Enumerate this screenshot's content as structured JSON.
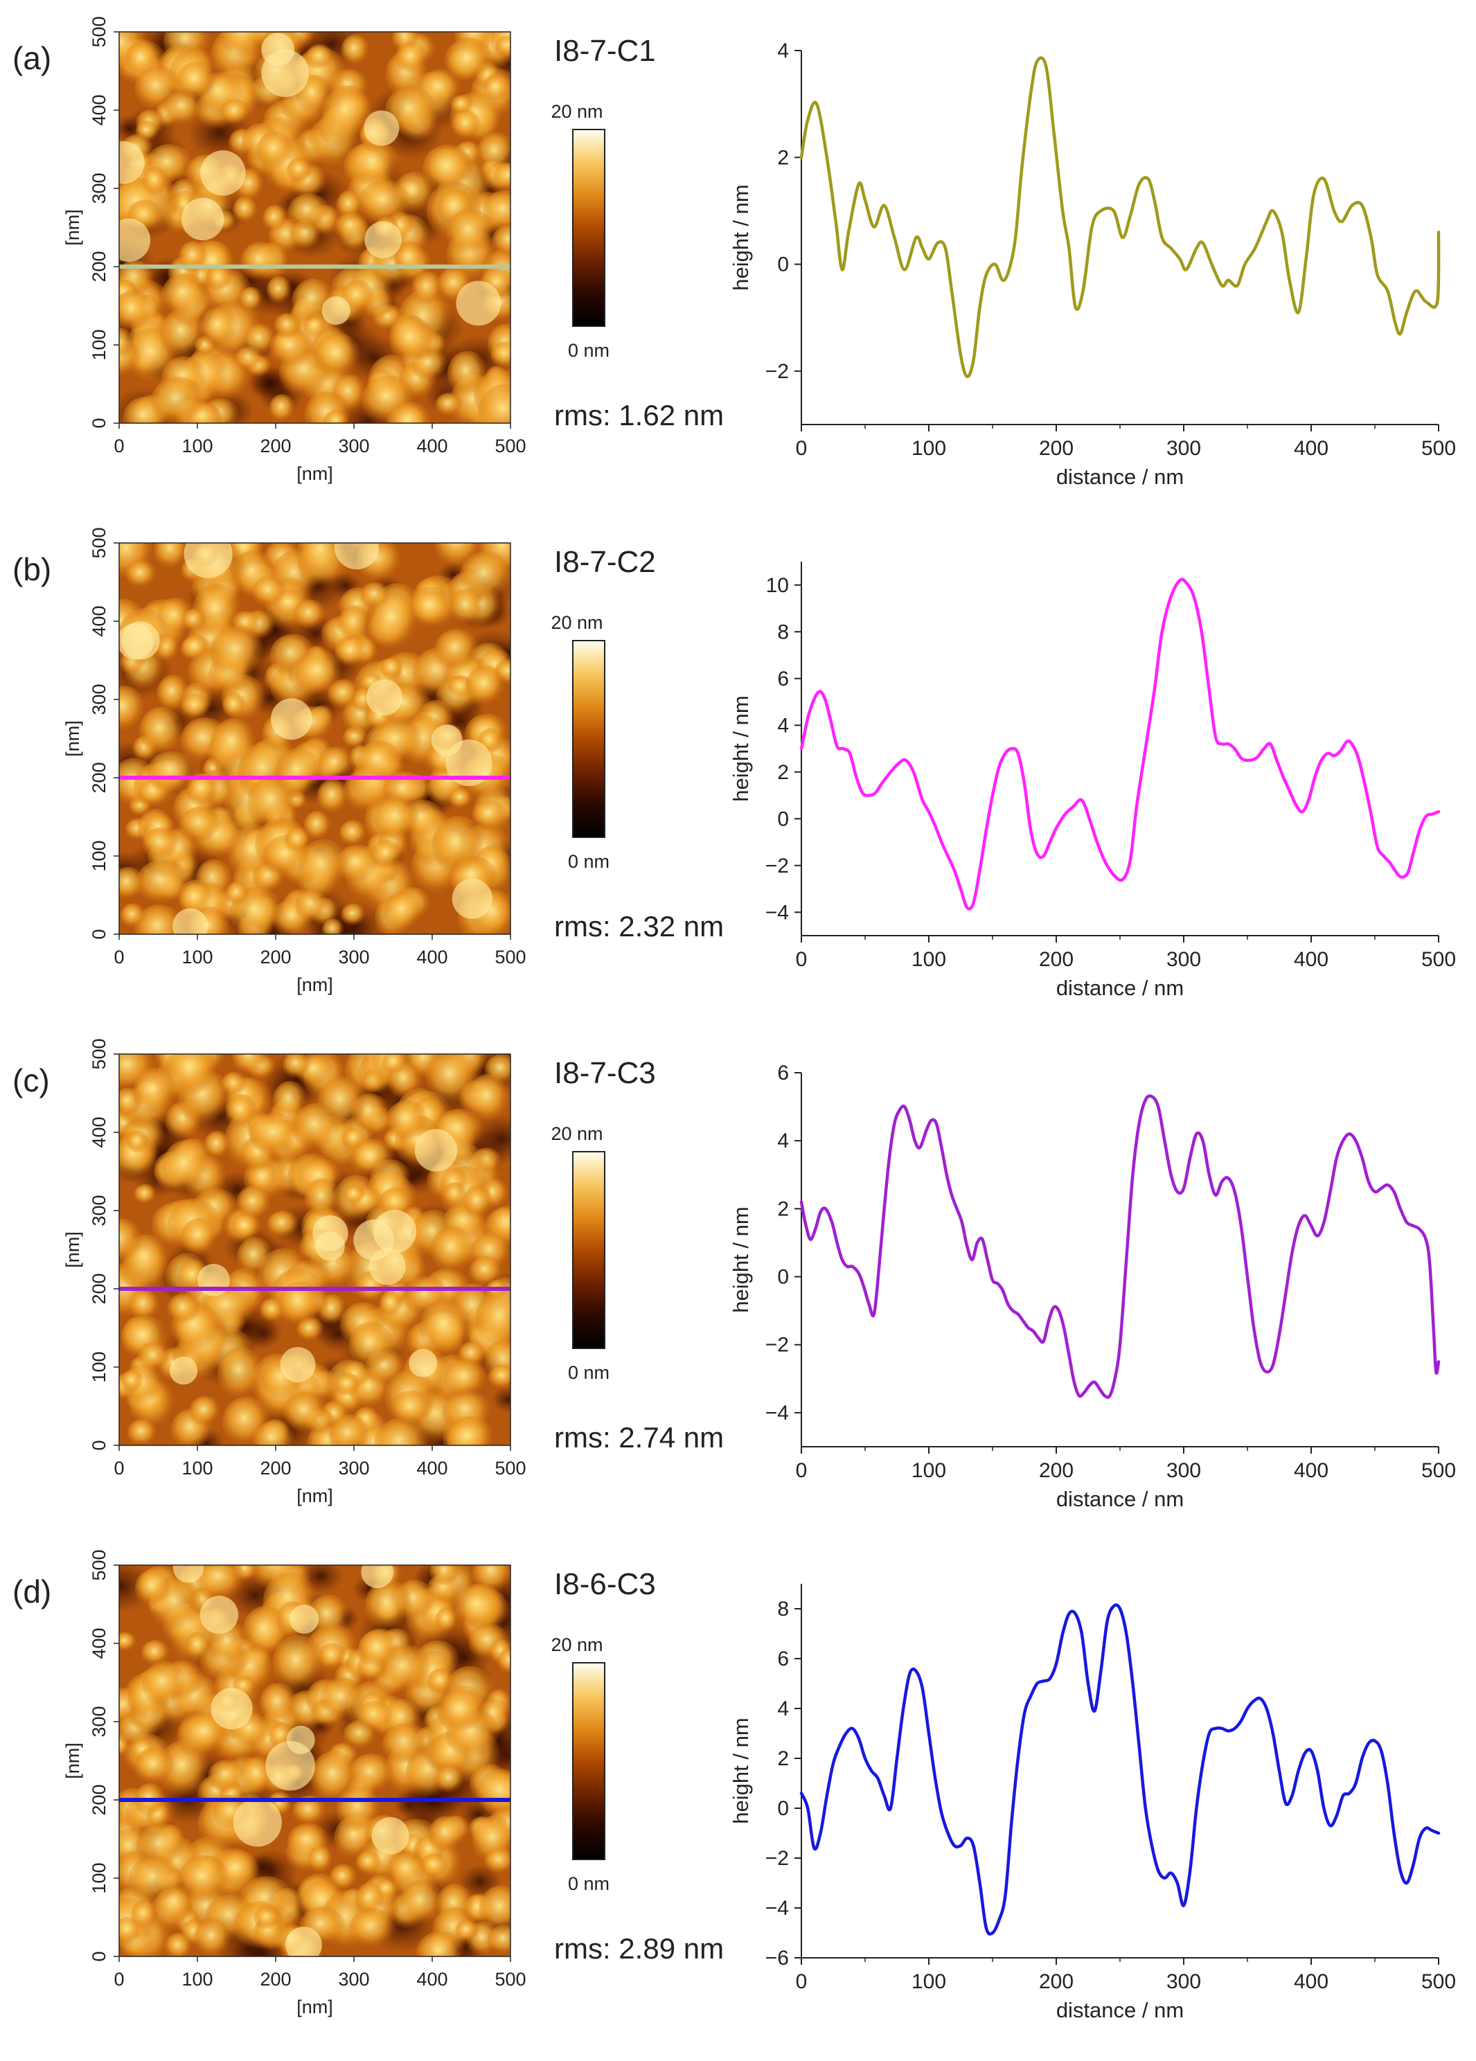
{
  "figure": {
    "colorbar_max_label": "20 nm",
    "colorbar_min_label": "0 nm",
    "afm_axis_label": "[nm]",
    "afm_ticks": [
      "0",
      "100",
      "200",
      "300",
      "400",
      "500"
    ],
    "colormap": [
      "#000000",
      "#2a0800",
      "#6e2200",
      "#b04a00",
      "#e08a1a",
      "#f8c860",
      "#fffff0"
    ]
  },
  "chart_data": [
    {
      "type": "line",
      "panel_label": "(a)",
      "sample": "I8-7-C1",
      "rms_text": "rms: 1.62 nm",
      "color": "#a09a1c",
      "scanline_color": "#b8c89a",
      "scanline_y_nm": 200,
      "xlabel": "distance / nm",
      "ylabel": "height / nm",
      "xlim": [
        0,
        500
      ],
      "ylim": [
        -3,
        4
      ],
      "xticks": [
        0,
        100,
        200,
        300,
        400,
        500
      ],
      "yticks": [
        -2,
        0,
        2,
        4
      ],
      "x": [
        0,
        5,
        12,
        20,
        27,
        32,
        37,
        45,
        50,
        57,
        65,
        73,
        81,
        90,
        95,
        100,
        107,
        113,
        118,
        125,
        130,
        135,
        140,
        145,
        152,
        158,
        163,
        168,
        173,
        180,
        185,
        192,
        198,
        205,
        210,
        215,
        221,
        228,
        235,
        245,
        252,
        258,
        265,
        272,
        277,
        283,
        290,
        297,
        302,
        310,
        315,
        322,
        330,
        335,
        342,
        348,
        356,
        365,
        370,
        377,
        383,
        390,
        396,
        402,
        410,
        418,
        424,
        432,
        440,
        447,
        452,
        460,
        466,
        470,
        475,
        482,
        490,
        499,
        500
      ],
      "y": [
        2.0,
        2.7,
        3.0,
        2.0,
        0.8,
        -0.1,
        0.6,
        1.5,
        1.2,
        0.7,
        1.1,
        0.5,
        -0.1,
        0.5,
        0.3,
        0.1,
        0.4,
        0.3,
        -0.5,
        -1.7,
        -2.1,
        -1.8,
        -0.8,
        -0.2,
        0.0,
        -0.3,
        -0.1,
        0.5,
        1.8,
        3.2,
        3.8,
        3.7,
        2.5,
        1.0,
        0.3,
        -0.8,
        -0.5,
        0.7,
        1.0,
        1.0,
        0.5,
        0.9,
        1.5,
        1.6,
        1.2,
        0.5,
        0.3,
        0.1,
        -0.1,
        0.3,
        0.4,
        0.0,
        -0.4,
        -0.3,
        -0.4,
        0.0,
        0.3,
        0.8,
        1.0,
        0.6,
        -0.3,
        -0.9,
        0.1,
        1.3,
        1.6,
        1.0,
        0.8,
        1.1,
        1.1,
        0.5,
        -0.2,
        -0.5,
        -1.1,
        -1.3,
        -0.9,
        -0.5,
        -0.7,
        -0.7,
        0.6
      ]
    },
    {
      "type": "line",
      "panel_label": "(b)",
      "sample": "I8-7-C2",
      "rms_text": "rms: 2.32 nm",
      "color": "#ff22ff",
      "scanline_color": "#ff22ff",
      "scanline_y_nm": 200,
      "xlabel": "distance / nm",
      "ylabel": "height / nm",
      "xlim": [
        0,
        500
      ],
      "ylim": [
        -5,
        11
      ],
      "xticks": [
        0,
        100,
        200,
        300,
        400,
        500
      ],
      "yticks": [
        -4,
        -2,
        0,
        2,
        4,
        6,
        8,
        10
      ],
      "x": [
        0,
        6,
        13,
        18,
        23,
        28,
        33,
        38,
        43,
        48,
        53,
        58,
        63,
        70,
        77,
        82,
        88,
        95,
        100,
        105,
        110,
        115,
        120,
        125,
        130,
        135,
        140,
        145,
        150,
        155,
        160,
        165,
        170,
        175,
        180,
        185,
        190,
        195,
        200,
        207,
        213,
        220,
        226,
        232,
        238,
        245,
        252,
        258,
        263,
        270,
        277,
        283,
        290,
        297,
        302,
        308,
        314,
        320,
        325,
        330,
        335,
        340,
        345,
        350,
        357,
        363,
        368,
        373,
        378,
        383,
        388,
        393,
        398,
        403,
        408,
        413,
        418,
        423,
        428,
        432,
        437,
        442,
        447,
        452,
        457,
        462,
        467,
        471,
        476,
        480,
        485,
        490,
        495,
        500
      ],
      "y": [
        3.0,
        4.5,
        5.4,
        5.2,
        4.2,
        3.1,
        3.0,
        2.8,
        1.8,
        1.1,
        1.0,
        1.1,
        1.5,
        2.0,
        2.4,
        2.5,
        2.0,
        0.8,
        0.3,
        -0.3,
        -1.0,
        -1.6,
        -2.2,
        -3.0,
        -3.8,
        -3.6,
        -2.2,
        -0.5,
        1.0,
        2.2,
        2.8,
        3.0,
        2.8,
        1.5,
        -0.5,
        -1.5,
        -1.6,
        -1.0,
        -0.4,
        0.2,
        0.5,
        0.8,
        0.0,
        -1.0,
        -1.8,
        -2.4,
        -2.6,
        -1.8,
        0.5,
        3.0,
        5.5,
        8.0,
        9.5,
        10.2,
        10.1,
        9.5,
        8.0,
        5.5,
        3.5,
        3.2,
        3.2,
        3.0,
        2.6,
        2.5,
        2.6,
        3.0,
        3.2,
        2.5,
        1.8,
        1.2,
        0.6,
        0.3,
        0.8,
        1.8,
        2.5,
        2.8,
        2.7,
        2.9,
        3.3,
        3.2,
        2.6,
        1.5,
        0.2,
        -1.2,
        -1.6,
        -1.9,
        -2.3,
        -2.5,
        -2.3,
        -1.5,
        -0.5,
        0.1,
        0.2,
        0.3
      ]
    },
    {
      "type": "line",
      "panel_label": "(c)",
      "sample": "I8-7-C3",
      "rms_text": "rms: 2.74 nm",
      "color": "#a020d0",
      "scanline_color": "#a020d0",
      "scanline_y_nm": 200,
      "xlabel": "distance / nm",
      "ylabel": "height / nm",
      "xlim": [
        0,
        500
      ],
      "ylim": [
        -5,
        6
      ],
      "xticks": [
        0,
        100,
        200,
        300,
        400,
        500
      ],
      "yticks": [
        -4,
        -2,
        0,
        2,
        4,
        6
      ],
      "x": [
        0,
        3,
        7,
        11,
        15,
        19,
        24,
        28,
        32,
        36,
        40,
        45,
        49,
        53,
        57,
        61,
        65,
        69,
        73,
        77,
        81,
        85,
        89,
        93,
        98,
        102,
        106,
        110,
        114,
        118,
        122,
        126,
        130,
        134,
        138,
        142,
        146,
        150,
        154,
        158,
        162,
        166,
        170,
        174,
        178,
        182,
        186,
        190,
        194,
        198,
        202,
        206,
        210,
        214,
        218,
        222,
        226,
        230,
        234,
        238,
        242,
        246,
        250,
        255,
        260,
        265,
        270,
        275,
        280,
        285,
        290,
        295,
        300,
        305,
        310,
        315,
        320,
        325,
        330,
        335,
        340,
        345,
        350,
        355,
        360,
        365,
        370,
        375,
        380,
        385,
        390,
        395,
        400,
        405,
        410,
        415,
        420,
        425,
        430,
        435,
        440,
        445,
        450,
        455,
        460,
        465,
        470,
        475,
        480,
        485,
        490,
        493,
        496,
        498,
        500
      ],
      "y": [
        2.2,
        1.6,
        1.1,
        1.4,
        1.9,
        2.0,
        1.6,
        1.0,
        0.5,
        0.3,
        0.3,
        0.1,
        -0.3,
        -0.8,
        -1.1,
        0.3,
        2.0,
        3.5,
        4.5,
        4.9,
        5.0,
        4.6,
        4.0,
        3.8,
        4.3,
        4.6,
        4.5,
        3.8,
        3.0,
        2.4,
        2.0,
        1.6,
        0.9,
        0.5,
        1.0,
        1.1,
        0.5,
        -0.1,
        -0.2,
        -0.4,
        -0.8,
        -1.0,
        -1.1,
        -1.3,
        -1.5,
        -1.6,
        -1.8,
        -1.9,
        -1.3,
        -0.9,
        -1.0,
        -1.5,
        -2.3,
        -3.1,
        -3.5,
        -3.4,
        -3.2,
        -3.1,
        -3.3,
        -3.5,
        -3.5,
        -3.0,
        -2.0,
        0.5,
        3.0,
        4.5,
        5.2,
        5.3,
        5.0,
        4.0,
        3.0,
        2.5,
        2.6,
        3.5,
        4.2,
        4.0,
        3.0,
        2.4,
        2.8,
        2.9,
        2.5,
        1.5,
        0.0,
        -1.5,
        -2.5,
        -2.8,
        -2.6,
        -1.7,
        -0.5,
        0.7,
        1.5,
        1.8,
        1.5,
        1.2,
        1.6,
        2.5,
        3.5,
        4.0,
        4.2,
        4.0,
        3.5,
        2.8,
        2.5,
        2.6,
        2.7,
        2.5,
        2.0,
        1.6,
        1.5,
        1.4,
        1.1,
        0.4,
        -1.5,
        -2.8,
        -2.5
      ]
    },
    {
      "type": "line",
      "panel_label": "(d)",
      "sample": "I8-6-C3",
      "rms_text": "rms: 2.89 nm",
      "color": "#1818e0",
      "scanline_color": "#1818e0",
      "scanline_y_nm": 200,
      "xlabel": "distance / nm",
      "ylabel": "height / nm",
      "xlim": [
        0,
        500
      ],
      "ylim": [
        -6,
        9
      ],
      "xticks": [
        0,
        100,
        200,
        300,
        400,
        500
      ],
      "yticks": [
        -6,
        -4,
        -2,
        0,
        2,
        4,
        6,
        8
      ],
      "x": [
        0,
        5,
        10,
        15,
        20,
        25,
        30,
        35,
        40,
        45,
        50,
        55,
        60,
        65,
        70,
        75,
        80,
        85,
        90,
        95,
        100,
        105,
        110,
        115,
        120,
        125,
        130,
        135,
        140,
        145,
        150,
        155,
        160,
        165,
        170,
        175,
        180,
        185,
        190,
        195,
        200,
        205,
        210,
        215,
        220,
        225,
        230,
        235,
        240,
        245,
        250,
        255,
        260,
        265,
        270,
        275,
        280,
        285,
        290,
        295,
        300,
        305,
        310,
        315,
        320,
        325,
        330,
        335,
        340,
        345,
        350,
        355,
        360,
        365,
        370,
        375,
        380,
        385,
        390,
        395,
        400,
        405,
        410,
        415,
        420,
        425,
        430,
        435,
        440,
        445,
        450,
        455,
        460,
        465,
        470,
        475,
        480,
        485,
        490,
        495,
        500
      ],
      "y": [
        0.6,
        0.0,
        -1.6,
        -1.0,
        0.5,
        1.8,
        2.5,
        3.0,
        3.2,
        2.8,
        2.0,
        1.5,
        1.2,
        0.5,
        0.0,
        2.0,
        4.0,
        5.4,
        5.5,
        4.8,
        3.0,
        1.2,
        -0.2,
        -1.0,
        -1.5,
        -1.5,
        -1.2,
        -1.5,
        -3.0,
        -4.8,
        -5.0,
        -4.5,
        -3.5,
        -0.5,
        2.0,
        3.8,
        4.5,
        5.0,
        5.1,
        5.2,
        5.8,
        7.0,
        7.8,
        7.8,
        7.0,
        5.0,
        3.9,
        5.5,
        7.5,
        8.1,
        8.0,
        7.0,
        5.0,
        2.5,
        0.0,
        -1.5,
        -2.5,
        -2.8,
        -2.6,
        -3.0,
        -3.9,
        -2.5,
        0.0,
        1.8,
        3.0,
        3.2,
        3.2,
        3.1,
        3.2,
        3.5,
        4.0,
        4.3,
        4.4,
        4.0,
        3.0,
        1.5,
        0.2,
        0.5,
        1.5,
        2.2,
        2.3,
        1.5,
        0.0,
        -0.7,
        -0.3,
        0.5,
        0.6,
        1.0,
        2.0,
        2.6,
        2.7,
        2.3,
        1.0,
        -1.0,
        -2.5,
        -3.0,
        -2.3,
        -1.2,
        -0.8,
        -0.9,
        -1.0
      ]
    }
  ]
}
